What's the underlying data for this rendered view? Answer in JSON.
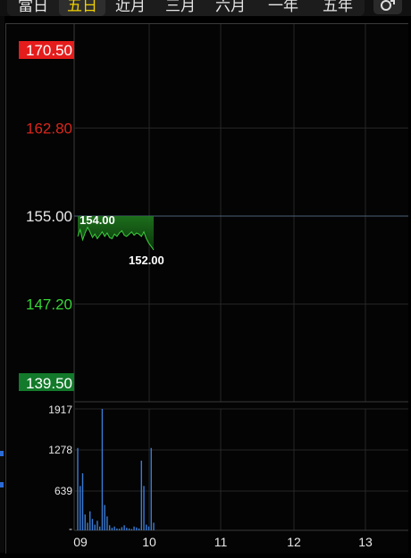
{
  "tabs": [
    {
      "label": "當日",
      "active": false
    },
    {
      "label": "五日",
      "active": true
    },
    {
      "label": "近月",
      "active": false
    },
    {
      "label": "三月",
      "active": false
    },
    {
      "label": "六月",
      "active": false
    },
    {
      "label": "一年",
      "active": false
    },
    {
      "label": "五年",
      "active": false
    }
  ],
  "chart_settings_icon": "chart-toggle-icon",
  "chart_data": {
    "type": "line",
    "ylim": [
      139.5,
      170.5
    ],
    "y_ticks": [
      "170.50",
      "162.80",
      "155.00",
      "147.20",
      "139.50"
    ],
    "y_tick_colors": [
      "#ff3b30",
      "#d9261c",
      "#e8e8e8",
      "#35d635",
      "#e8e8e8"
    ],
    "reference_price": 155.0,
    "annotations": {
      "high": "154.00",
      "low": "152.00"
    },
    "x_ticks": [
      "09",
      "10",
      "11",
      "12",
      "13"
    ],
    "price_series": [
      153.2,
      153.8,
      152.9,
      153.5,
      154.0,
      153.6,
      153.1,
      153.4,
      153.0,
      153.3,
      153.6,
      153.2,
      153.5,
      153.1,
      153.0,
      153.4,
      153.2,
      153.5,
      153.7,
      153.3,
      153.2,
      153.4,
      153.6,
      153.3,
      153.5,
      153.4,
      153.2,
      153.6,
      153.0,
      152.6,
      152.3,
      152.0
    ],
    "volume": {
      "ylim": [
        0,
        1917
      ],
      "y_ticks": [
        "1917",
        "1278",
        "639",
        "-"
      ],
      "values": [
        1300,
        700,
        900,
        250,
        120,
        300,
        180,
        90,
        150,
        60,
        1917,
        400,
        220,
        80,
        40,
        60,
        30,
        25,
        50,
        80,
        40,
        30,
        20,
        60,
        45,
        30,
        1100,
        700,
        90,
        60,
        1300,
        120
      ]
    },
    "price_color": "#3ccf3c",
    "fill_color": "#1f7a1f"
  }
}
